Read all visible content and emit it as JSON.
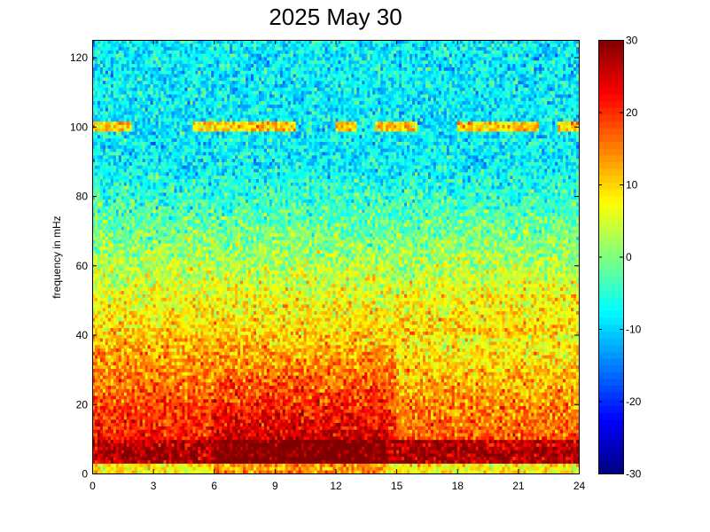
{
  "chart_data": {
    "type": "heatmap",
    "title": "2025 May 30",
    "xlabel": "",
    "ylabel": "frequency in mHz",
    "xlim": [
      0,
      24
    ],
    "ylim": [
      0,
      125
    ],
    "x_ticks": [
      "0",
      "3",
      "6",
      "9",
      "12",
      "15",
      "18",
      "21",
      "24"
    ],
    "y_ticks": [
      "0",
      "20",
      "40",
      "60",
      "80",
      "100",
      "120"
    ],
    "colorbar": {
      "range": [
        -30,
        30
      ],
      "ticks": [
        "30",
        "20",
        "10",
        "0",
        "-10",
        "-20",
        "-30"
      ],
      "colormap": "jet"
    },
    "grid": false,
    "description_of_values": "power level per hour/frequency cell; strongest (~30) below 10 mHz all day, broad enhancement 0-30 mHz between ~6-14 h, horizontal bands near 100 mHz (intermittent) and 50 mHz (after ~15 h)",
    "feature_bands": [
      {
        "frequency": 100,
        "hours": [
          [
            0,
            2
          ],
          [
            5,
            10
          ],
          [
            12,
            13
          ],
          [
            14,
            16
          ],
          [
            18,
            22
          ],
          [
            23,
            24
          ]
        ],
        "level": 10
      },
      {
        "frequency": 50,
        "hours": [
          [
            15,
            24
          ]
        ],
        "level": 8
      },
      {
        "frequency": 5,
        "hours": [
          [
            0,
            24
          ]
        ],
        "level": 28
      }
    ]
  },
  "colors": {
    "background": "#ffffff",
    "axis": "#000000"
  }
}
